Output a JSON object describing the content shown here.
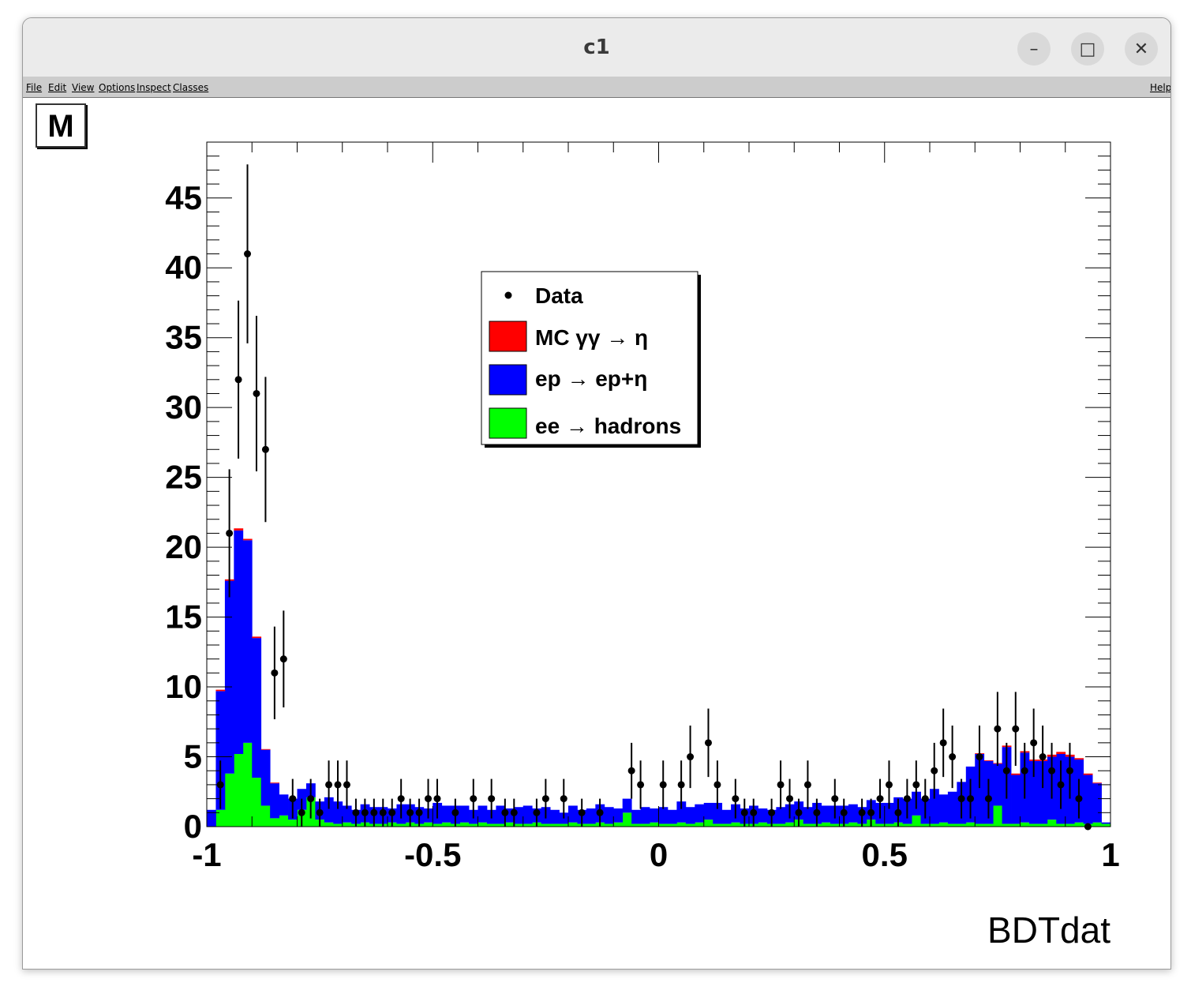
{
  "window": {
    "title": "c1",
    "controls": {
      "minimize": "–",
      "maximize": "□",
      "close": "✕"
    }
  },
  "menu": {
    "items": [
      "File",
      "Edit",
      "View",
      "Options",
      "Inspect",
      "Classes"
    ],
    "help": "Help"
  },
  "canvas": {
    "mode_badge": "M"
  },
  "chart_data": {
    "type": "bar",
    "subtype": "stacked-histogram-with-data-points",
    "xlabel": "BDTdat",
    "xlim": [
      -1,
      1
    ],
    "ylim": [
      0,
      49
    ],
    "x_ticks": [
      -1,
      -0.5,
      0,
      0.5,
      1
    ],
    "x_tick_labels": [
      "-1",
      "-0.5",
      "0",
      "0.5",
      "1"
    ],
    "y_ticks": [
      0,
      5,
      10,
      15,
      20,
      25,
      30,
      35,
      40,
      45
    ],
    "y_tick_labels": [
      "0",
      "5",
      "10",
      "15",
      "20",
      "25",
      "30",
      "35",
      "40",
      "45"
    ],
    "bin_count": 100,
    "legend": {
      "placement": "top-center",
      "entries": [
        {
          "label": "Data",
          "marker": "dot"
        },
        {
          "label": "MC γγ → η",
          "color": "#ff0000"
        },
        {
          "label": "ep → ep+η",
          "color": "#0000ff"
        },
        {
          "label": "ee → hadrons",
          "color": "#00ff00"
        }
      ]
    },
    "series": [
      {
        "name": "ee → hadrons",
        "color": "#00ff00",
        "values": [
          0,
          1.2,
          3.8,
          5.2,
          6,
          3.5,
          1.5,
          0.6,
          0.8,
          0.5,
          1.2,
          2.1,
          0.5,
          0.3,
          0.2,
          0.3,
          0.2,
          0.3,
          0.2,
          0.2,
          0.3,
          0.2,
          0.3,
          0.2,
          0.3,
          0.2,
          0.3,
          0.2,
          0.3,
          0.2,
          0.3,
          0.2,
          0.2,
          0.3,
          0.2,
          0.2,
          0.3,
          0.2,
          0.2,
          0.2,
          0.3,
          0.2,
          0.2,
          0.3,
          0.2,
          0.3,
          1,
          0.2,
          0.2,
          0.3,
          0.2,
          0.2,
          0.3,
          0.2,
          0.3,
          0.5,
          0.2,
          0.2,
          0.3,
          0.2,
          0.2,
          0.3,
          0.2,
          0.2,
          0.3,
          0.5,
          0.2,
          0.2,
          0.3,
          0.2,
          0.2,
          0.3,
          0.2,
          0.5,
          0.2,
          0.2,
          0.3,
          0.2,
          0.8,
          0.2,
          0.2,
          0.3,
          0.2,
          0.2,
          0.3,
          0.2,
          0.2,
          1.5,
          0.2,
          0.2,
          0.3,
          0.2,
          0.2,
          0.5,
          0.2,
          0.2,
          0.3,
          0.2,
          0.3,
          0.2
        ]
      },
      {
        "name": "ep → ep+η",
        "color": "#0000ff",
        "values": [
          1.2,
          8.5,
          13.8,
          16,
          14.5,
          10,
          4,
          2.5,
          1.5,
          1.5,
          1.5,
          1,
          1.3,
          1.8,
          1.6,
          1.2,
          1,
          1.3,
          1.2,
          1.2,
          1,
          1.4,
          1.3,
          1.2,
          1,
          1.5,
          1.2,
          1.3,
          1.2,
          1,
          1.2,
          1,
          1.3,
          1,
          1.2,
          1.3,
          1,
          1.2,
          1,
          0.8,
          1.2,
          1,
          1.1,
          1.3,
          1.2,
          1,
          1,
          1,
          1.2,
          1,
          1.2,
          1,
          1.5,
          1.2,
          1.3,
          1.2,
          1.5,
          1,
          1.3,
          1.1,
          1.3,
          1,
          1,
          1.2,
          1.3,
          1.3,
          1.2,
          1.5,
          1.2,
          1.3,
          1.3,
          1.3,
          1.2,
          1.4,
          1.5,
          1.5,
          1.8,
          1.8,
          1.7,
          1.8,
          2.5,
          2,
          2.3,
          3,
          4,
          5,
          4.5,
          3,
          5.5,
          3.5,
          5,
          4.5,
          4.5,
          4.5,
          5,
          4.8,
          4.5,
          3.5,
          2.8,
          0.1
        ]
      },
      {
        "name": "MC γγ → η",
        "color": "#ff0000",
        "values": [
          0,
          0.1,
          0.1,
          0.15,
          0.1,
          0.1,
          0.05,
          0.05,
          0,
          0,
          0,
          0,
          0,
          0,
          0,
          0,
          0,
          0,
          0,
          0,
          0,
          0,
          0,
          0,
          0,
          0,
          0,
          0,
          0,
          0,
          0,
          0,
          0,
          0,
          0,
          0,
          0,
          0,
          0,
          0,
          0,
          0,
          0,
          0,
          0,
          0,
          0,
          0,
          0,
          0,
          0,
          0,
          0,
          0,
          0,
          0,
          0,
          0,
          0,
          0,
          0,
          0,
          0,
          0,
          0,
          0,
          0,
          0,
          0,
          0,
          0,
          0,
          0,
          0,
          0,
          0,
          0,
          0,
          0,
          0,
          0,
          0,
          0,
          0,
          0,
          0.05,
          0.05,
          0.05,
          0.1,
          0.1,
          0.1,
          0.1,
          0.1,
          0.15,
          0.15,
          0.15,
          0.1,
          0.1,
          0.05,
          0
        ]
      }
    ],
    "data_points": {
      "name": "Data",
      "x": [
        -0.97,
        -0.95,
        -0.93,
        -0.91,
        -0.89,
        -0.87,
        -0.85,
        -0.83,
        -0.81,
        -0.79,
        -0.77,
        -0.75,
        -0.73,
        -0.71,
        -0.69,
        -0.67,
        -0.65,
        -0.63,
        -0.61,
        -0.59,
        -0.57,
        -0.55,
        -0.53,
        -0.51,
        -0.49,
        -0.45,
        -0.41,
        -0.37,
        -0.34,
        -0.32,
        -0.27,
        -0.25,
        -0.21,
        -0.17,
        -0.13,
        -0.06,
        -0.04,
        0.01,
        0.05,
        0.07,
        0.11,
        0.13,
        0.17,
        0.19,
        0.21,
        0.25,
        0.27,
        0.29,
        0.31,
        0.33,
        0.35,
        0.39,
        0.41,
        0.45,
        0.47,
        0.49,
        0.51,
        0.53,
        0.55,
        0.57,
        0.59,
        0.61,
        0.63,
        0.65,
        0.67,
        0.69,
        0.71,
        0.73,
        0.75,
        0.77,
        0.79,
        0.81,
        0.83,
        0.85,
        0.87,
        0.89,
        0.91,
        0.93,
        0.95
      ],
      "y": [
        3,
        21,
        32,
        41,
        31,
        27,
        11,
        12,
        2,
        1,
        2,
        1,
        3,
        3,
        3,
        1,
        1,
        1,
        1,
        1,
        2,
        1,
        1,
        2,
        2,
        1,
        2,
        2,
        1,
        1,
        1,
        2,
        2,
        1,
        1,
        4,
        3,
        3,
        3,
        5,
        6,
        3,
        2,
        1,
        1,
        1,
        3,
        2,
        1,
        3,
        1,
        2,
        1,
        1,
        1,
        2,
        3,
        1,
        2,
        3,
        2,
        4,
        6,
        5,
        2,
        2,
        5,
        2,
        7,
        4,
        7,
        4,
        6,
        5,
        4,
        3,
        4,
        2,
        0
      ]
    }
  }
}
